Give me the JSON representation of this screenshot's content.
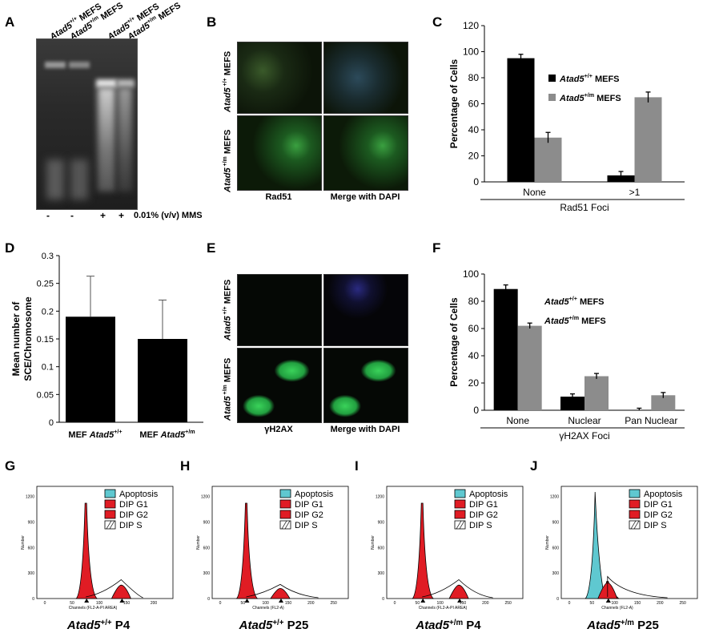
{
  "panels": {
    "A": "A",
    "B": "B",
    "C": "C",
    "D": "D",
    "E": "E",
    "F": "F",
    "G": "G",
    "H": "H",
    "I": "I",
    "J": "J"
  },
  "panelA": {
    "lanes": [
      {
        "gene": "Atad5",
        "sup": "+/+",
        "suffix": " MEFS"
      },
      {
        "gene": "Atad5",
        "sup": "+/m",
        "suffix": " MEFS"
      },
      {
        "gene": "Atad5",
        "sup": "+/+",
        "suffix": " MEFS"
      },
      {
        "gene": "Atad5",
        "sup": "+/m",
        "suffix": " MEFS"
      }
    ],
    "treatment_marks": [
      "-",
      "-",
      "+",
      "+"
    ],
    "treatment_label": "0.01% (v/v) MMS"
  },
  "panelB": {
    "row1_label": {
      "gene": "Atad5",
      "sup": " +/+",
      "suffix": " MEFS"
    },
    "row2_label": {
      "gene": "Atad5",
      "sup": " +/m",
      "suffix": " MEFS"
    },
    "col1": "Rad51",
    "col2": "Merge with DAPI"
  },
  "panelE": {
    "row1_label": {
      "gene": "Atad5",
      "sup": " +/+",
      "suffix": " MEFS"
    },
    "row2_label": {
      "gene": "Atad5",
      "sup": " +/m",
      "suffix": " MEFS"
    },
    "col1": "γH2AX",
    "col2": "Merge with DAPI"
  },
  "chart_data": [
    {
      "id": "C",
      "type": "bar",
      "ylabel": "Percentage of Cells",
      "xlabel": "Rad51 Foci",
      "categories": [
        "None",
        ">1"
      ],
      "ylim": [
        0,
        120
      ],
      "yticks": [
        "0",
        "20",
        "40",
        "60",
        "80",
        "100",
        "120"
      ],
      "series": [
        {
          "name": "Atad5 +/+ MEFS",
          "gene": "Atad5",
          "sup": "+/+",
          "suffix": " MEFS",
          "color": "#000000",
          "values": [
            95,
            5
          ],
          "errors": [
            3,
            3
          ]
        },
        {
          "name": "Atad5 +/m MEFS",
          "gene": "Atad5",
          "sup": "+/m",
          "suffix": " MEFS",
          "color": "#8c8c8c",
          "values": [
            34,
            65
          ],
          "errors": [
            4,
            4
          ]
        }
      ],
      "legend": "top-right"
    },
    {
      "id": "D",
      "type": "bar",
      "ylabel": [
        "Mean number of",
        "SCE/Chromosome"
      ],
      "categories": [
        {
          "prefix": "MEF ",
          "gene": "Atad5",
          "sup": "+/+"
        },
        {
          "prefix": "MEF ",
          "gene": "Atad5",
          "sup": "+/m"
        }
      ],
      "values": [
        0.19,
        0.15
      ],
      "errors": [
        0.073,
        0.07
      ],
      "ylim": [
        0,
        0.3
      ],
      "yticks": [
        "0",
        "0.05",
        "0.1",
        "0.15",
        "0.2",
        "0.25",
        "0.3"
      ],
      "color": "#000000"
    },
    {
      "id": "F",
      "type": "bar",
      "ylabel": "Percentage of Cells",
      "xlabel": "γH2AX Foci",
      "categories": [
        "None",
        "Nuclear",
        "Pan Nuclear"
      ],
      "ylim": [
        0,
        100
      ],
      "yticks": [
        "0",
        "20",
        "40",
        "60",
        "80",
        "100"
      ],
      "series": [
        {
          "name": "Atad5 +/+ MEFS",
          "gene": "Atad5",
          "sup": "+/+",
          "suffix": " MEFS",
          "color": "#000000",
          "values": [
            89,
            10,
            0
          ],
          "errors": [
            3,
            2,
            1.5
          ]
        },
        {
          "name": "Atad5 +/m MEFS",
          "gene": "Atad5",
          "sup": "+/m",
          "suffix": " MEFS",
          "color": "#8c8c8c",
          "values": [
            62,
            25,
            11
          ],
          "errors": [
            2,
            2,
            2
          ]
        }
      ],
      "legend": "top-right"
    }
  ],
  "flow_panels": [
    {
      "id": "G",
      "caption": {
        "gene": "Atad5",
        "sup": "+/+",
        "suffix": " P4"
      },
      "xaxis": "Channels (FL2-A-PI AREA)",
      "xticks": [
        "0",
        "50",
        "100",
        "150",
        "200"
      ]
    },
    {
      "id": "H",
      "caption": {
        "gene": "Atad5",
        "sup": "+/+",
        "suffix": " P25"
      },
      "xaxis": "Channels (FL2-A)",
      "xticks": [
        "0",
        "50",
        "100",
        "150",
        "200",
        "250"
      ]
    },
    {
      "id": "I",
      "caption": {
        "gene": "Atad5",
        "sup": "+/m",
        "suffix": " P4"
      },
      "xaxis": "Channels (FL2-A-PI AREA)",
      "xticks": [
        "0",
        "50",
        "100",
        "150",
        "200",
        "250"
      ]
    },
    {
      "id": "J",
      "caption": {
        "gene": "Atad5",
        "sup": "+/m",
        "suffix": " P25"
      },
      "xaxis": "Channels (FL2-A)",
      "xticks": [
        "0",
        "50",
        "100",
        "150",
        "200",
        "250"
      ]
    }
  ],
  "flow_legend": [
    {
      "label": "Apoptosis",
      "color": "#5fc8d0"
    },
    {
      "label": "DIP G1",
      "color": "#e01c24"
    },
    {
      "label": "DIP G2",
      "color": "#e01c24"
    },
    {
      "label": "DIP S",
      "color": "#ffffff",
      "hatch": true
    }
  ],
  "flow_ylabel": "Number",
  "flow_yticks": [
    "0",
    "300",
    "600",
    "900",
    "1200"
  ]
}
